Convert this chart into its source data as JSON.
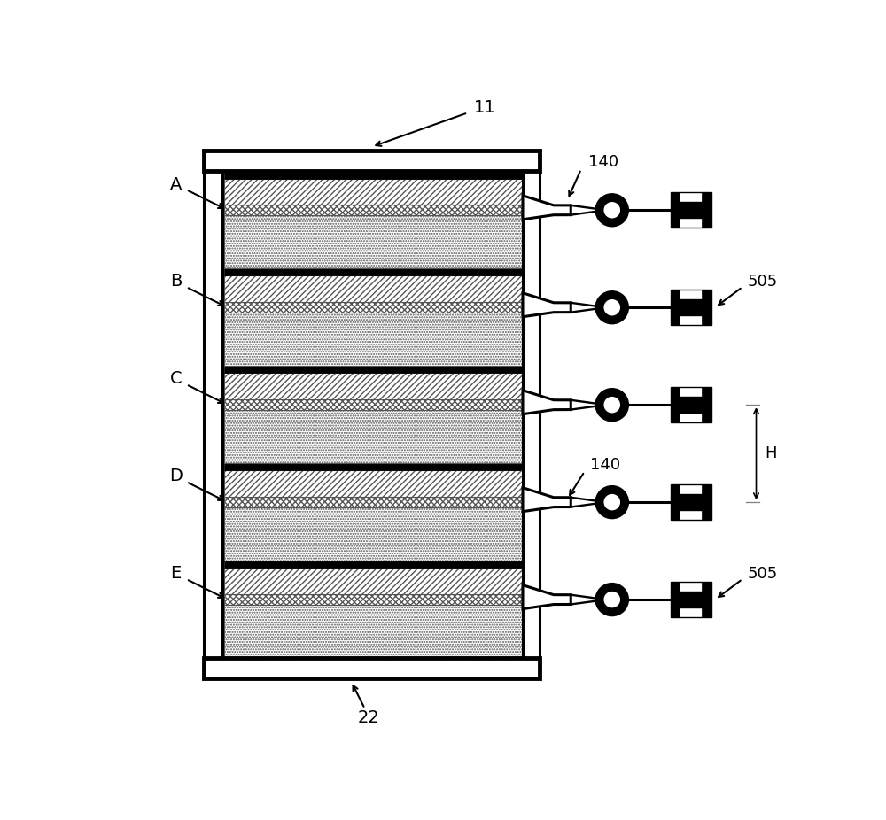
{
  "fig_width": 10.0,
  "fig_height": 9.26,
  "dpi": 100,
  "bg_color": "#ffffff",
  "num_cells": 5,
  "cell_labels": [
    "A",
    "B",
    "C",
    "D",
    "E"
  ],
  "label_11": "11",
  "label_22": "22",
  "label_140": "140",
  "label_505": "505",
  "label_H": "H",
  "black": "#000000",
  "white": "#ffffff",
  "gray": "#808080"
}
